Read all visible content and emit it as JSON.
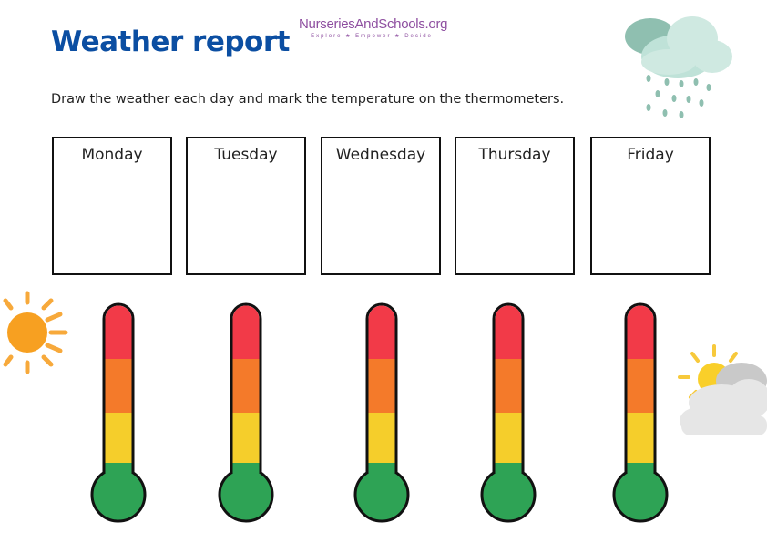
{
  "header": {
    "title": "Weather report",
    "logo_text": "NurseriesAndSchools.org",
    "logo_tagline": "Explore ★ Empower ★ Decide"
  },
  "instructions": "Draw the weather each day and mark the temperature on the thermometers.",
  "days": [
    {
      "label": "Monday"
    },
    {
      "label": "Tuesday"
    },
    {
      "label": "Wednesday"
    },
    {
      "label": "Thursday"
    },
    {
      "label": "Friday"
    }
  ],
  "thermometer_colors": {
    "hot": "#f23a48",
    "warm": "#f47a2a",
    "mild": "#f5ce2b",
    "cold": "#2ea355",
    "outline": "#111111"
  },
  "decorations": {
    "top_right": "rain-cloud-icon",
    "left": "sun-icon",
    "right": "sun-behind-cloud-icon"
  }
}
